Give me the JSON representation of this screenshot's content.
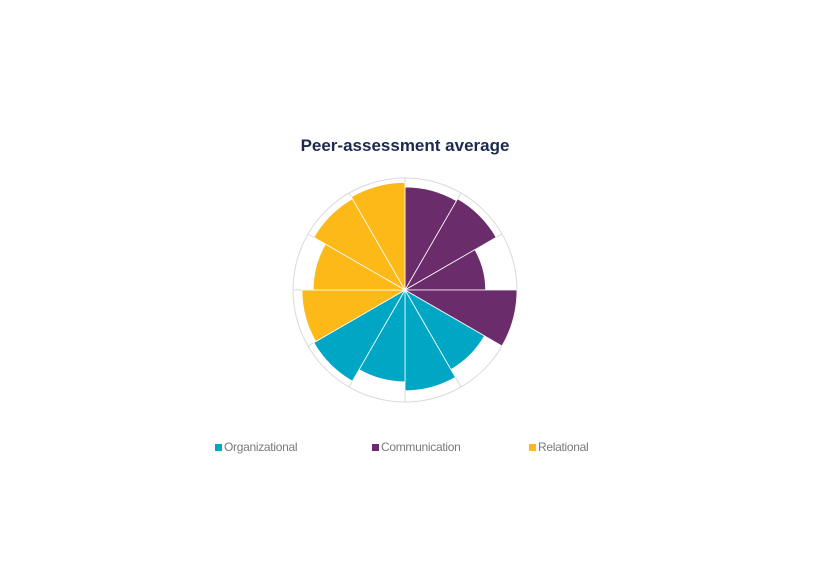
{
  "chart_data": {
    "type": "polar-area",
    "title": "Peer-assessment average",
    "rmax": 5,
    "categories": [
      "Organizational",
      "Communication",
      "Relational"
    ],
    "colors": {
      "Organizational": "#00a7c4",
      "Communication": "#6a2c6a",
      "Relational": "#fcb918",
      "grid": "#d9d9d9",
      "slice_border": "#ffffff"
    },
    "slices": [
      {
        "category": "Communication",
        "value": 4.6
      },
      {
        "category": "Communication",
        "value": 4.7
      },
      {
        "category": "Communication",
        "value": 3.6
      },
      {
        "category": "Communication",
        "value": 5.0
      },
      {
        "category": "Organizational",
        "value": 4.1
      },
      {
        "category": "Organizational",
        "value": 4.5
      },
      {
        "category": "Organizational",
        "value": 4.1
      },
      {
        "category": "Organizational",
        "value": 4.7
      },
      {
        "category": "Relational",
        "value": 4.6
      },
      {
        "category": "Relational",
        "value": 4.1
      },
      {
        "category": "Relational",
        "value": 4.7
      },
      {
        "category": "Relational",
        "value": 4.8
      }
    ]
  },
  "legend": [
    {
      "label": "Organizational",
      "color": "#00a7c4"
    },
    {
      "label": "Communication",
      "color": "#6a2c6a"
    },
    {
      "label": "Relational",
      "color": "#fcb918"
    }
  ]
}
